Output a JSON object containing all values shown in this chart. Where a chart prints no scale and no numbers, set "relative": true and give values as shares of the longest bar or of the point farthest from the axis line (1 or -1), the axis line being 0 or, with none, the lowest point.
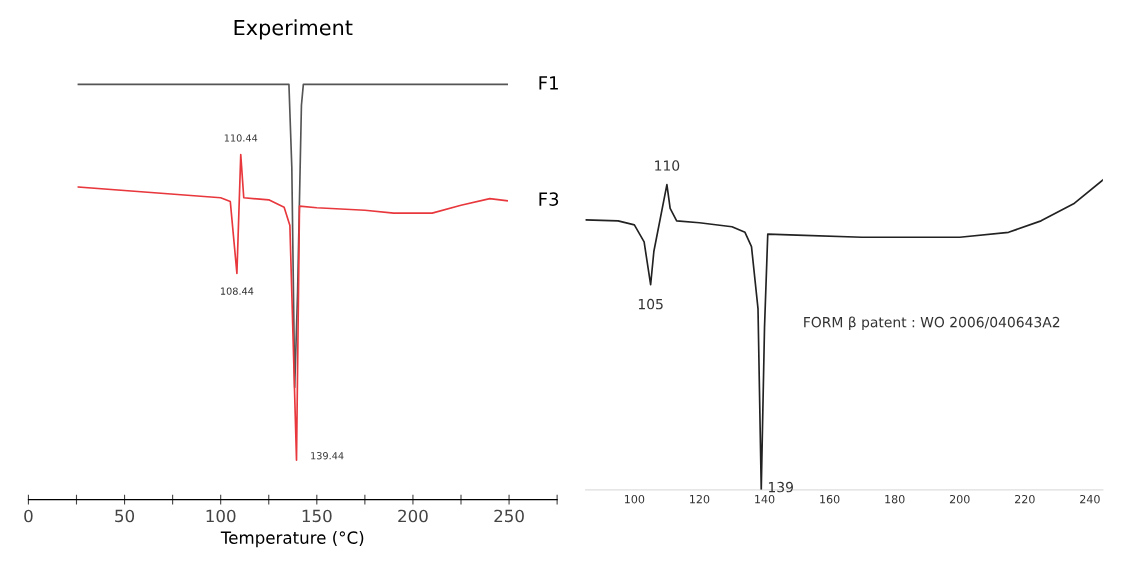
{
  "chart_data": [
    {
      "type": "line",
      "title": "Experiment",
      "xlabel": "Temperature (°C)",
      "relative": true,
      "xlim": [
        0,
        275
      ],
      "xticks": [
        0,
        {
          "value": 25,
          "label": null
        },
        50,
        {
          "value": 75,
          "label": null
        },
        100,
        {
          "value": 125,
          "label": null
        },
        150,
        {
          "value": 175,
          "label": null
        },
        200,
        {
          "value": 225,
          "label": null
        },
        250,
        {
          "value": 275,
          "label": null
        }
      ],
      "series": [
        {
          "name": "F1",
          "color": "#555555",
          "x": [
            26,
            135.5,
            137,
            138.5,
            140,
            142,
            143,
            249
          ],
          "values": [
            1.0,
            1.0,
            0.8,
            0.27,
            0.5,
            0.95,
            1.0,
            1.0
          ]
        },
        {
          "name": "F3",
          "color": "#e8383d",
          "x": [
            26,
            100,
            105,
            108.44,
            110.44,
            112,
            125,
            133,
            136,
            139.44,
            141,
            150,
            175,
            190,
            210,
            225,
            240,
            249
          ],
          "values": [
            0.753,
            0.727,
            0.718,
            0.545,
            0.831,
            0.727,
            0.722,
            0.704,
            0.66,
            0.095,
            0.707,
            0.703,
            0.697,
            0.69,
            0.69,
            0.709,
            0.725,
            0.72
          ]
        }
      ],
      "annotations": [
        {
          "text": "110.44",
          "x": 110.44,
          "y": 0.831
        },
        {
          "text": "108.44",
          "x": 108.44,
          "y": 0.545
        },
        {
          "text": "139.44",
          "x": 139.44,
          "y": 0.095
        }
      ]
    },
    {
      "type": "line",
      "relative": true,
      "xlim": [
        85,
        244
      ],
      "xticks": [
        100,
        120,
        140,
        160,
        180,
        200,
        220,
        240
      ],
      "series": [
        {
          "color": "#222222",
          "x": [
            85,
            95,
            100,
            103,
            105,
            106,
            110,
            111,
            113,
            120,
            130,
            134,
            136,
            138,
            139,
            140,
            141,
            150,
            170,
            200,
            215,
            225,
            235,
            244
          ],
          "values": [
            0.871,
            0.868,
            0.855,
            0.8,
            0.662,
            0.77,
            0.985,
            0.908,
            0.868,
            0.862,
            0.849,
            0.831,
            0.785,
            0.585,
            0.0,
            0.523,
            0.825,
            0.822,
            0.815,
            0.815,
            0.831,
            0.868,
            0.923,
            1.0
          ]
        }
      ],
      "annotations": [
        {
          "text": "110",
          "x": 110,
          "y": 0.985
        },
        {
          "text": "105",
          "x": 105,
          "y": 0.662
        },
        {
          "text": "139",
          "x": 139,
          "y": 0.0
        },
        "FORM β patent : WO 2006/040643A2"
      ]
    }
  ]
}
